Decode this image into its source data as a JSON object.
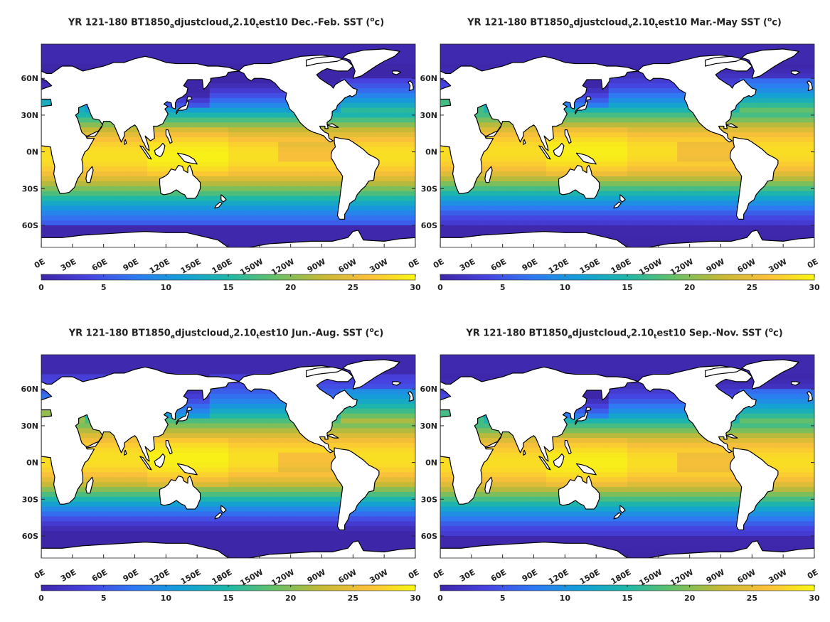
{
  "chart_data": [
    {
      "type": "heatmap",
      "title_parts": {
        "a": "YR 121-180 BT1850",
        "b": "a",
        "c": "djustcloud",
        "d": "v",
        "e": "2.10",
        "f": "t",
        "g": "est10 Dec.-Feb. SST (",
        "h": "o",
        "i": "c)"
      },
      "x_ticks": [
        "0E",
        "30E",
        "60E",
        "90E",
        "120E",
        "150E",
        "180E",
        "150W",
        "120W",
        "90W",
        "60W",
        "30W",
        "0E"
      ],
      "y_ticks": [
        "60N",
        "30N",
        "0N",
        "30S",
        "60S"
      ],
      "colorbar_ticks": [
        "0",
        "5",
        "10",
        "15",
        "20",
        "25",
        "30"
      ],
      "clim": [
        0,
        30
      ],
      "xlim": [
        0,
        360
      ],
      "ylim": [
        -78,
        88
      ],
      "colormap": "parula",
      "season": "DJF"
    },
    {
      "type": "heatmap",
      "title_parts": {
        "a": "YR 121-180 BT1850",
        "b": "a",
        "c": "djustcloud",
        "d": "v",
        "e": "2.10",
        "f": "t",
        "g": "est10 Mar.-May SST (",
        "h": "o",
        "i": "c)"
      },
      "x_ticks": [
        "0E",
        "30E",
        "60E",
        "90E",
        "120E",
        "150E",
        "180E",
        "150W",
        "120W",
        "90W",
        "60W",
        "30W",
        "0E"
      ],
      "y_ticks": [
        "60N",
        "30N",
        "0N",
        "30S",
        "60S"
      ],
      "colorbar_ticks": [
        "0",
        "5",
        "10",
        "15",
        "20",
        "25",
        "30"
      ],
      "clim": [
        0,
        30
      ],
      "xlim": [
        0,
        360
      ],
      "ylim": [
        -78,
        88
      ],
      "colormap": "parula",
      "season": "MAM"
    },
    {
      "type": "heatmap",
      "title_parts": {
        "a": "YR 121-180 BT1850",
        "b": "a",
        "c": "djustcloud",
        "d": "v",
        "e": "2.10",
        "f": "t",
        "g": "est10 Jun.-Aug. SST (",
        "h": "o",
        "i": "c)"
      },
      "x_ticks": [
        "0E",
        "30E",
        "60E",
        "90E",
        "120E",
        "150E",
        "180E",
        "150W",
        "120W",
        "90W",
        "60W",
        "30W",
        "0E"
      ],
      "y_ticks": [
        "60N",
        "30N",
        "0N",
        "30S",
        "60S"
      ],
      "colorbar_ticks": [
        "0",
        "5",
        "10",
        "15",
        "20",
        "25",
        "30"
      ],
      "clim": [
        0,
        30
      ],
      "xlim": [
        0,
        360
      ],
      "ylim": [
        -78,
        88
      ],
      "colormap": "parula",
      "season": "JJA"
    },
    {
      "type": "heatmap",
      "title_parts": {
        "a": "YR 121-180 BT1850",
        "b": "a",
        "c": "djustcloud",
        "d": "v",
        "e": "2.10",
        "f": "t",
        "g": "est10 Sep.-Nov. SST (",
        "h": "o",
        "i": "c)"
      },
      "x_ticks": [
        "0E",
        "30E",
        "60E",
        "90E",
        "120E",
        "150E",
        "180E",
        "150W",
        "120W",
        "90W",
        "60W",
        "30W",
        "0E"
      ],
      "y_ticks": [
        "60N",
        "30N",
        "0N",
        "30S",
        "60S"
      ],
      "colorbar_ticks": [
        "0",
        "5",
        "10",
        "15",
        "20",
        "25",
        "30"
      ],
      "clim": [
        0,
        30
      ],
      "xlim": [
        0,
        360
      ],
      "ylim": [
        -78,
        88
      ],
      "colormap": "parula",
      "season": "SON"
    }
  ],
  "colors": {
    "parula_stops": [
      "#3e26a8",
      "#4743e0",
      "#2f79f3",
      "#139fd7",
      "#1fb7a8",
      "#66c067",
      "#c6b936",
      "#fcc03a",
      "#f7f613"
    ],
    "land": "#ffffff",
    "coast": "#000000"
  }
}
